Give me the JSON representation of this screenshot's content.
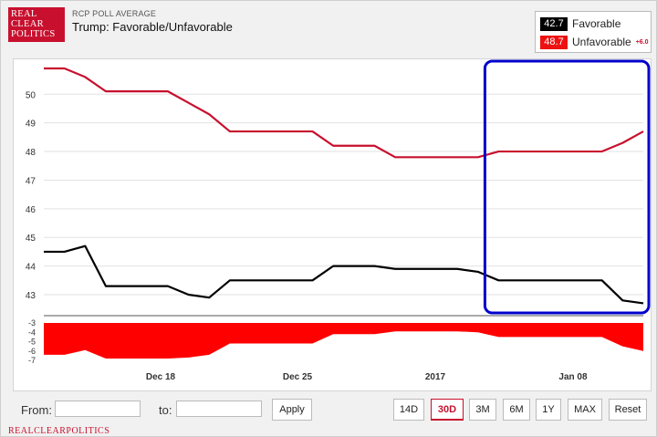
{
  "header": {
    "logo_lines": [
      "REAL",
      "CLEAR",
      "POLITICS"
    ],
    "kicker": "RCP POLL AVERAGE",
    "title": "Trump: Favorable/Unfavorable"
  },
  "legend": {
    "favorable": {
      "value": "42.7",
      "label": "Favorable",
      "color": "#000000"
    },
    "unfavorable": {
      "value": "48.7",
      "label": "Unfavorable",
      "color": "#ee1111"
    },
    "spread": "+6.0"
  },
  "chart_data": {
    "type": "line",
    "x_ticks": [
      "Dec 18",
      "Dec 25",
      "2017",
      "Jan 08"
    ],
    "y_ticks": [
      43,
      44,
      45,
      46,
      47,
      48,
      49,
      50
    ],
    "ylim": [
      42.3,
      50.9
    ],
    "spread_ticks": [
      -3,
      -4,
      -5,
      -6,
      -7
    ],
    "spread_lim": [
      -3,
      -7
    ],
    "x_steps": 30,
    "series": [
      {
        "name": "Favorable",
        "color": "#000000",
        "points": [
          [
            0,
            44.5
          ],
          [
            1,
            44.5
          ],
          [
            2,
            44.7
          ],
          [
            3,
            43.3
          ],
          [
            4,
            43.3
          ],
          [
            5,
            43.3
          ],
          [
            6,
            43.3
          ],
          [
            7,
            43.0
          ],
          [
            8,
            42.9
          ],
          [
            9,
            43.5
          ],
          [
            10,
            43.5
          ],
          [
            11,
            43.5
          ],
          [
            12,
            43.5
          ],
          [
            13,
            43.5
          ],
          [
            14,
            44.0
          ],
          [
            15,
            44.0
          ],
          [
            16,
            44.0
          ],
          [
            17,
            43.9
          ],
          [
            18,
            43.9
          ],
          [
            19,
            43.9
          ],
          [
            20,
            43.9
          ],
          [
            21,
            43.8
          ],
          [
            22,
            43.5
          ],
          [
            23,
            43.5
          ],
          [
            24,
            43.5
          ],
          [
            25,
            43.5
          ],
          [
            26,
            43.5
          ],
          [
            27,
            43.5
          ],
          [
            28,
            42.8
          ],
          [
            29,
            42.7
          ]
        ]
      },
      {
        "name": "Unfavorable",
        "color": "#c8102e",
        "points": [
          [
            0,
            50.9
          ],
          [
            1,
            50.9
          ],
          [
            2,
            50.6
          ],
          [
            3,
            50.1
          ],
          [
            4,
            50.1
          ],
          [
            5,
            50.1
          ],
          [
            6,
            50.1
          ],
          [
            7,
            49.7
          ],
          [
            8,
            49.3
          ],
          [
            9,
            48.7
          ],
          [
            10,
            48.7
          ],
          [
            11,
            48.7
          ],
          [
            12,
            48.7
          ],
          [
            13,
            48.7
          ],
          [
            14,
            48.2
          ],
          [
            15,
            48.2
          ],
          [
            16,
            48.2
          ],
          [
            17,
            47.8
          ],
          [
            18,
            47.8
          ],
          [
            19,
            47.8
          ],
          [
            20,
            47.8
          ],
          [
            21,
            47.8
          ],
          [
            22,
            48.0
          ],
          [
            23,
            48.0
          ],
          [
            24,
            48.0
          ],
          [
            25,
            48.0
          ],
          [
            26,
            48.0
          ],
          [
            27,
            48.0
          ],
          [
            28,
            48.3
          ],
          [
            29,
            48.7
          ]
        ]
      }
    ],
    "spread_series": {
      "name": "Spread",
      "color": "#ff0000",
      "points": [
        [
          0,
          -6.4
        ],
        [
          1,
          -6.4
        ],
        [
          2,
          -5.9
        ],
        [
          3,
          -6.8
        ],
        [
          4,
          -6.8
        ],
        [
          5,
          -6.8
        ],
        [
          6,
          -6.8
        ],
        [
          7,
          -6.7
        ],
        [
          8,
          -6.4
        ],
        [
          9,
          -5.2
        ],
        [
          10,
          -5.2
        ],
        [
          11,
          -5.2
        ],
        [
          12,
          -5.2
        ],
        [
          13,
          -5.2
        ],
        [
          14,
          -4.2
        ],
        [
          15,
          -4.2
        ],
        [
          16,
          -4.2
        ],
        [
          17,
          -3.9
        ],
        [
          18,
          -3.9
        ],
        [
          19,
          -3.9
        ],
        [
          20,
          -3.9
        ],
        [
          21,
          -4.0
        ],
        [
          22,
          -4.5
        ],
        [
          23,
          -4.5
        ],
        [
          24,
          -4.5
        ],
        [
          25,
          -4.5
        ],
        [
          26,
          -4.5
        ],
        [
          27,
          -4.5
        ],
        [
          28,
          -5.5
        ],
        [
          29,
          -6.0
        ]
      ]
    },
    "highlight": {
      "x_from": 22,
      "x_to": 30,
      "color": "#0000cc"
    },
    "grid": true
  },
  "controls": {
    "from_label": "From:",
    "to_label": "to:",
    "apply": "Apply",
    "ranges": [
      "14D",
      "30D",
      "3M",
      "6M",
      "1Y",
      "MAX"
    ],
    "active_range": "30D",
    "reset": "Reset"
  },
  "footer": "REALCLEARPOLITICS"
}
